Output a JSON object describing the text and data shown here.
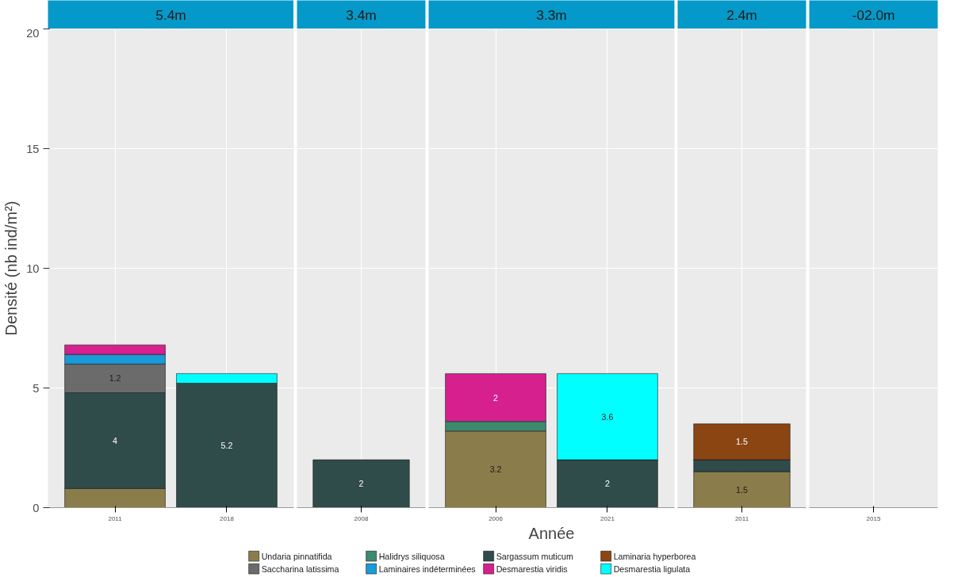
{
  "chart_data": [
    {
      "type": "bar",
      "stacked": true,
      "title": "5.4m",
      "ylabel": "Densité (nb ind/m²)",
      "categories": [
        "2011",
        "2018"
      ],
      "ylim": [
        0,
        20
      ],
      "yticks": [
        0,
        5,
        10,
        15,
        20
      ],
      "grid": true,
      "series": [
        {
          "color": "#8b7d4b",
          "values": [
            0.8,
            null
          ]
        },
        {
          "color": "#3d8a6e",
          "values": [
            null,
            null
          ]
        },
        {
          "color": "#2f4b4a",
          "values": [
            4,
            5.2
          ],
          "value_labels": [
            "4",
            "5.2"
          ]
        },
        {
          "color": "#8b4513",
          "values": [
            null,
            null
          ]
        },
        {
          "color": "#6b6b6b",
          "values": [
            1.2,
            null
          ],
          "value_labels": [
            "1.2",
            null
          ]
        },
        {
          "color": "#1a9ad6",
          "values": [
            0.4,
            null
          ]
        },
        {
          "color": "#d5208e",
          "values": [
            0.4,
            null
          ]
        },
        {
          "color": "#00ffff",
          "values": [
            null,
            0.4
          ]
        }
      ]
    },
    {
      "type": "bar",
      "stacked": true,
      "title": "3.4m",
      "categories": [
        "2008"
      ],
      "ylim": [
        0,
        20
      ],
      "yticks": [
        0,
        5,
        10,
        15,
        20
      ],
      "grid": true,
      "tick_labels": "x",
      "series": [
        {
          "color": "#8b7d4b",
          "values": [
            null
          ]
        },
        {
          "color": "#3d8a6e",
          "values": [
            null
          ]
        },
        {
          "color": "#2f4b4a",
          "values": [
            2
          ],
          "value_labels": [
            "2"
          ]
        },
        {
          "color": "#8b4513",
          "values": [
            null
          ]
        },
        {
          "color": "#6b6b6b",
          "values": [
            null
          ]
        },
        {
          "color": "#1a9ad6",
          "values": [
            null
          ]
        },
        {
          "color": "#d5208e",
          "values": [
            null
          ]
        },
        {
          "color": "#00ffff",
          "values": [
            null
          ]
        }
      ]
    },
    {
      "type": "bar",
      "stacked": true,
      "title": "3.3m",
      "xlabel": "Année",
      "legend": "bottom",
      "categories": [
        "2006",
        "2021"
      ],
      "ylim": [
        0,
        20
      ],
      "yticks": [
        0,
        5,
        10,
        15,
        20
      ],
      "grid": true,
      "tick_labels": "x",
      "series": [
        {
          "name": "Undaria pinnatifida",
          "color": "#8b7d4b",
          "values": [
            3.2,
            null
          ],
          "value_labels": [
            "3.2",
            null
          ]
        },
        {
          "name": "Halidrys siliquosa",
          "color": "#3d8a6e",
          "values": [
            0.4,
            null
          ]
        },
        {
          "name": "Sargassum muticum",
          "color": "#2f4b4a",
          "values": [
            null,
            2
          ],
          "value_labels": [
            null,
            "2"
          ]
        },
        {
          "name": "Laminaria hyperborea",
          "color": "#8b4513",
          "values": [
            null,
            null
          ]
        },
        {
          "name": "Saccharina latissima",
          "color": "#6b6b6b",
          "values": [
            null,
            null
          ]
        },
        {
          "name": "Laminaires indéterminées",
          "color": "#1a9ad6",
          "values": [
            null,
            null
          ]
        },
        {
          "name": "Desmarestia viridis",
          "color": "#d5208e",
          "values": [
            2,
            null
          ],
          "value_labels": [
            "2",
            null
          ]
        },
        {
          "name": "Desmarestia ligulata",
          "color": "#00ffff",
          "values": [
            null,
            3.6
          ],
          "value_labels": [
            null,
            "3.6"
          ]
        }
      ]
    },
    {
      "type": "bar",
      "stacked": true,
      "title": "2.4m",
      "categories": [
        "2011"
      ],
      "ylim": [
        0,
        20
      ],
      "yticks": [
        0,
        5,
        10,
        15,
        20
      ],
      "grid": true,
      "tick_labels": "x",
      "series": [
        {
          "color": "#8b7d4b",
          "values": [
            1.5
          ],
          "value_labels": [
            "1.5"
          ]
        },
        {
          "color": "#3d8a6e",
          "values": [
            null
          ]
        },
        {
          "color": "#2f4b4a",
          "values": [
            0.5
          ]
        },
        {
          "color": "#8b4513",
          "values": [
            1.5
          ],
          "value_labels": [
            "1.5"
          ]
        },
        {
          "color": "#6b6b6b",
          "values": [
            null
          ]
        },
        {
          "color": "#1a9ad6",
          "values": [
            null
          ]
        },
        {
          "color": "#d5208e",
          "values": [
            null
          ]
        },
        {
          "color": "#00ffff",
          "values": [
            null
          ]
        }
      ]
    },
    {
      "type": "bar",
      "stacked": true,
      "title": "-02.0m",
      "categories": [
        "2015"
      ],
      "ylim": [
        0,
        20
      ],
      "yticks": [
        0,
        5,
        10,
        15,
        20
      ],
      "grid": true,
      "tick_labels": "x",
      "series": [
        {
          "color": "#8b7d4b",
          "values": [
            null
          ]
        },
        {
          "color": "#3d8a6e",
          "values": [
            null
          ]
        },
        {
          "color": "#2f4b4a",
          "values": [
            null
          ]
        },
        {
          "color": "#8b4513",
          "values": [
            null
          ]
        },
        {
          "color": "#6b6b6b",
          "values": [
            null
          ]
        },
        {
          "color": "#1a9ad6",
          "values": [
            null
          ]
        },
        {
          "color": "#d5208e",
          "values": [
            null
          ]
        },
        {
          "color": "#00ffff",
          "values": [
            null
          ]
        }
      ]
    }
  ]
}
